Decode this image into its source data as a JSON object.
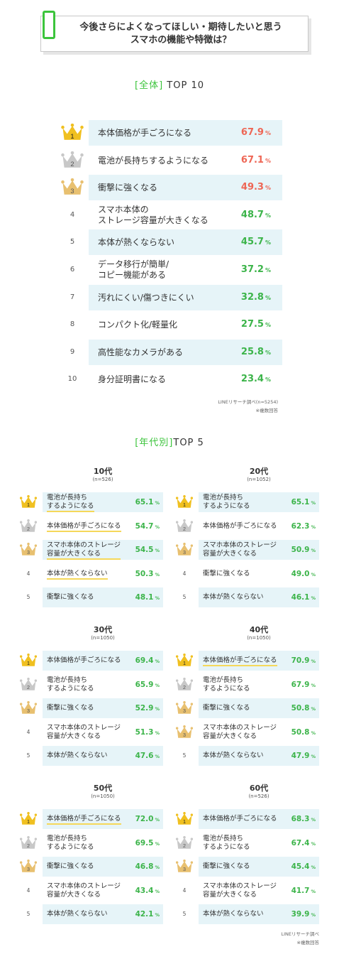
{
  "header": {
    "title_line1": "今後さらによくなってほしい・期待したいと思う",
    "title_line2": "スマホの機能や特徴は？"
  },
  "colors": {
    "accent": "#3cc43c",
    "row_shade": "#e6f4f8",
    "value_green": "#3cb44a",
    "value_red": "#ee6655",
    "gold": "#f0c020",
    "silver": "#c8c8c8",
    "bronze": "#e8c070"
  },
  "overall": {
    "heading_bracket_open": "[",
    "heading_label": "全体",
    "heading_bracket_close": "]",
    "heading_suffix": " TOP 10",
    "source": "LINEリサーチ調べ(n=5254)",
    "footnote": "※複数回答"
  },
  "age": {
    "heading_bracket_open": "[",
    "heading_label": "年代別",
    "heading_bracket_close": "]",
    "heading_suffix": "TOP 5",
    "source": "LINEリサーチ調べ",
    "footnote": "※複数回答"
  },
  "pct_unit": "%",
  "chart_data": [
    {
      "type": "table",
      "title": "[全体] TOP 10",
      "ranks": [
        "1",
        "2",
        "3",
        "4",
        "5",
        "6",
        "7",
        "8",
        "9",
        "10"
      ],
      "categories": [
        "本体価格が手ごろになる",
        "電池が長持ちするようになる",
        "衝撃に強くなる",
        "スマホ本体の\nストレージ容量が大きくなる",
        "本体が熱くならない",
        "データ移行が簡単/\nコピー機能がある",
        "汚れにくい/傷つきにくい",
        "コンパクト化/軽量化",
        "高性能なカメラがある",
        "身分証明書になる"
      ],
      "values": [
        67.9,
        67.1,
        49.3,
        48.7,
        45.7,
        37.2,
        32.8,
        27.5,
        25.8,
        23.4
      ],
      "unit": "%"
    },
    {
      "type": "table",
      "title": "10代",
      "n": "(n=526)",
      "ranks": [
        "1",
        "2",
        "3",
        "4",
        "5"
      ],
      "categories": [
        "電池が長持ち\nするようになる",
        "本体価格が手ごろになる",
        "スマホ本体のストレージ\n容量が大きくなる",
        "本体が熱くならない",
        "衝撃に強くなる"
      ],
      "values": [
        65.1,
        54.7,
        54.5,
        50.3,
        48.1
      ],
      "unit": "%"
    },
    {
      "type": "table",
      "title": "20代",
      "n": "(n=1052)",
      "ranks": [
        "1",
        "2",
        "3",
        "4",
        "5"
      ],
      "categories": [
        "電池が長持ち\nするようになる",
        "本体価格が手ごろになる",
        "スマホ本体のストレージ\n容量が大きくなる",
        "衝撃に強くなる",
        "本体が熱くならない"
      ],
      "values": [
        65.1,
        62.3,
        50.9,
        49.0,
        46.1
      ],
      "unit": "%"
    },
    {
      "type": "table",
      "title": "30代",
      "n": "(n=1050)",
      "ranks": [
        "1",
        "2",
        "3",
        "4",
        "5"
      ],
      "categories": [
        "本体価格が手ごろになる",
        "電池が長持ち\nするようになる",
        "衝撃に強くなる",
        "スマホ本体のストレージ\n容量が大きくなる",
        "本体が熱くならない"
      ],
      "values": [
        69.4,
        65.9,
        52.9,
        51.3,
        47.6
      ],
      "unit": "%"
    },
    {
      "type": "table",
      "title": "40代",
      "n": "(n=1050)",
      "ranks": [
        "1",
        "2",
        "3",
        "3",
        "5"
      ],
      "categories": [
        "本体価格が手ごろになる",
        "電池が長持ち\nするようになる",
        "衝撃に強くなる",
        "スマホ本体のストレージ\n容量が大きくなる",
        "本体が熱くならない"
      ],
      "values": [
        70.9,
        67.9,
        50.8,
        50.8,
        47.9
      ],
      "unit": "%"
    },
    {
      "type": "table",
      "title": "50代",
      "n": "(n=1050)",
      "ranks": [
        "1",
        "2",
        "3",
        "4",
        "5"
      ],
      "categories": [
        "本体価格が手ごろになる",
        "電池が長持ち\nするようになる",
        "衝撃に強くなる",
        "スマホ本体のストレージ\n容量が大きくなる",
        "本体が熱くならない"
      ],
      "values": [
        72.0,
        69.5,
        46.8,
        43.4,
        42.1
      ],
      "unit": "%"
    },
    {
      "type": "table",
      "title": "60代",
      "n": "(n=526)",
      "ranks": [
        "1",
        "2",
        "3",
        "4",
        "5"
      ],
      "categories": [
        "本体価格が手ごろになる",
        "電池が長持ち\nするようになる",
        "衝撃に強くなる",
        "スマホ本体のストレージ\n容量が大きくなる",
        "本体が熱くならない"
      ],
      "values": [
        68.3,
        67.4,
        45.4,
        41.7,
        39.9
      ],
      "unit": "%"
    }
  ]
}
